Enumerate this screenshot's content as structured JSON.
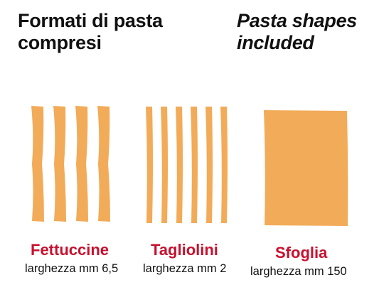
{
  "title_it": [
    "Formati di pasta",
    "compresi"
  ],
  "title_en": [
    "Pasta shapes",
    "included"
  ],
  "colors": {
    "pasta": "#f2ab58",
    "name": "#c8102e",
    "text": "#111111"
  },
  "shapes": [
    {
      "name": "Fettuccine",
      "desc": "larghezza mm 6,5",
      "strands": 4
    },
    {
      "name": "Tagliolini",
      "desc": "larghezza mm 2",
      "strands": 6
    },
    {
      "name": "Sfoglia",
      "desc": "larghezza mm 150",
      "strands": 1
    }
  ]
}
